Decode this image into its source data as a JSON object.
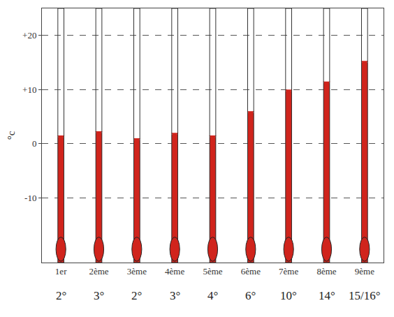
{
  "chart_data": {
    "type": "thermometer",
    "categories": [
      "1er",
      "2ème",
      "3ème",
      "4ème",
      "5ème",
      "6ème",
      "7ème",
      "8ème",
      "9ème"
    ],
    "values": [
      1.2,
      2,
      0.7,
      1.7,
      1.2,
      5.7,
      9.7,
      11.2,
      15
    ],
    "annotations": [
      "2°",
      "3°",
      "2°",
      "3°",
      "4°",
      "6°",
      "10°",
      "14°",
      "15/16°"
    ],
    "y_label": "°c",
    "color": "#d0241c",
    "ylim": [
      -22,
      25
    ],
    "yticks": [
      -10,
      0,
      {
        "value": 10,
        "label": "+10"
      },
      {
        "value": 20,
        "label": "+20"
      }
    ],
    "grid": true
  }
}
